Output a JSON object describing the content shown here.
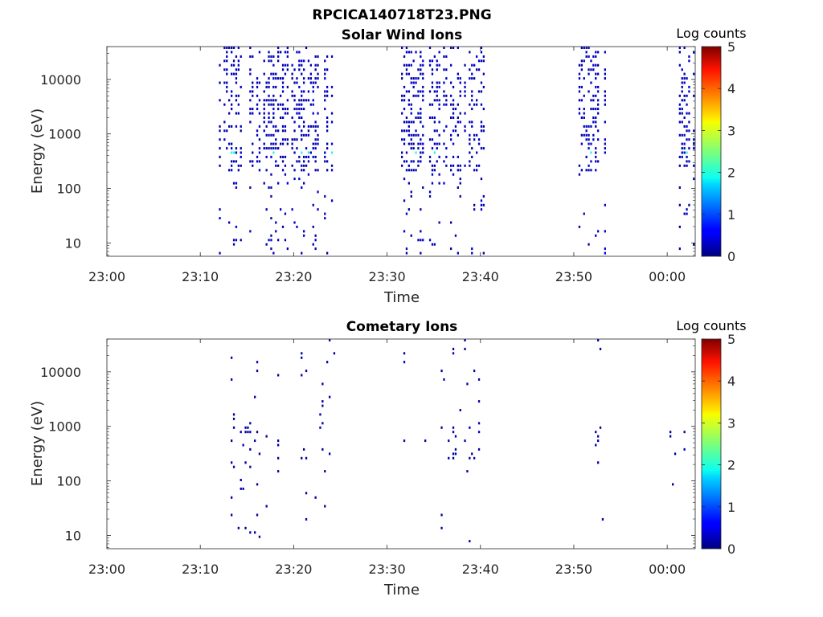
{
  "figure": {
    "suptitle": "RPCICA140718T23.PNG"
  },
  "colorbar": {
    "label": "Log counts",
    "ticks": [
      0,
      1,
      2,
      3,
      4,
      5
    ],
    "range": [
      0,
      5
    ],
    "colormap": "jet"
  },
  "chart_data": [
    {
      "type": "heatmap",
      "title": "Solar Wind Ions",
      "xlabel": "Time",
      "ylabel": "Energy (eV)",
      "x_ticks": [
        "23:00",
        "23:10",
        "23:20",
        "23:30",
        "23:40",
        "23:50",
        "00:00"
      ],
      "x_range_minutes": [
        0,
        63
      ],
      "y_scale": "log",
      "y_range": [
        5.7,
        40000
      ],
      "y_ticks": [
        10,
        100,
        1000,
        10000
      ],
      "y_tick_labels": [
        "10",
        "100",
        "1000",
        "10000"
      ],
      "colorbar_label": "Log counts",
      "colorbar_range": [
        0,
        5
      ],
      "active_intervals_minutes": [
        [
          12.0,
          24.5
        ],
        [
          31.5,
          40.5
        ],
        [
          50.5,
          53.5
        ],
        [
          60.0,
          63.0
        ]
      ],
      "dense_energy_band_eV": [
        300,
        40000
      ],
      "peak_energy_eV": 450,
      "peak_log_counts": 2.0,
      "typical_log_counts": 0.3
    },
    {
      "type": "heatmap",
      "title": "Cometary Ions",
      "xlabel": "Time",
      "ylabel": "Energy (eV)",
      "x_ticks": [
        "23:00",
        "23:10",
        "23:20",
        "23:30",
        "23:40",
        "23:50",
        "00:00"
      ],
      "x_range_minutes": [
        0,
        63
      ],
      "y_scale": "log",
      "y_range": [
        5.7,
        40000
      ],
      "y_ticks": [
        10,
        100,
        1000,
        10000
      ],
      "y_tick_labels": [
        "10",
        "100",
        "1000",
        "10000"
      ],
      "colorbar_label": "Log counts",
      "colorbar_range": [
        0,
        5
      ],
      "active_intervals_minutes": [
        [
          12.0,
          24.5
        ],
        [
          31.5,
          40.5
        ],
        [
          50.5,
          53.5
        ],
        [
          60.0,
          63.0
        ]
      ],
      "sparse_energy_band_eV": [
        1000,
        40000
      ],
      "peak_energy_eV": 450,
      "peak_log_counts": 1.8,
      "typical_log_counts": 0.2
    }
  ]
}
